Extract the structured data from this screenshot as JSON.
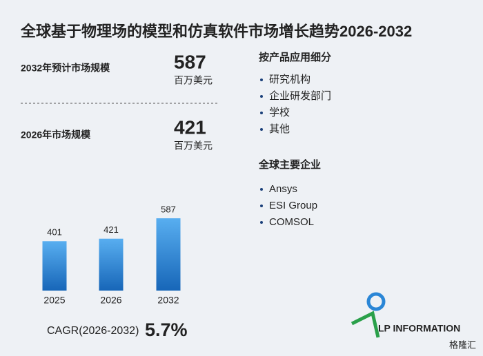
{
  "title": "全球基于物理场的模型和仿真软件市场增长趋势2026-2032",
  "stats": [
    {
      "label": "2032年预计市场规模",
      "value": 587,
      "unit": "百万美元"
    },
    {
      "label": "2026年市场规模",
      "value": 421,
      "unit": "百万美元"
    }
  ],
  "chart_data": {
    "type": "bar",
    "categories": [
      "2025",
      "2026",
      "2032"
    ],
    "values": [
      401,
      421,
      587
    ],
    "color": "#2a86d6"
  },
  "cagr": {
    "label": "CAGR(2026-2032)",
    "value": 5.7,
    "value_label": "5.7%"
  },
  "segments": {
    "title": "按产品应用细分",
    "items": [
      "研究机构",
      "企业研发部门",
      "学校",
      "其他"
    ]
  },
  "companies": {
    "title": "全球主要企业",
    "items": [
      "Ansys",
      "ESI Group",
      "COMSOL"
    ]
  },
  "logo": "LP INFORMATION",
  "watermark": "格隆汇"
}
